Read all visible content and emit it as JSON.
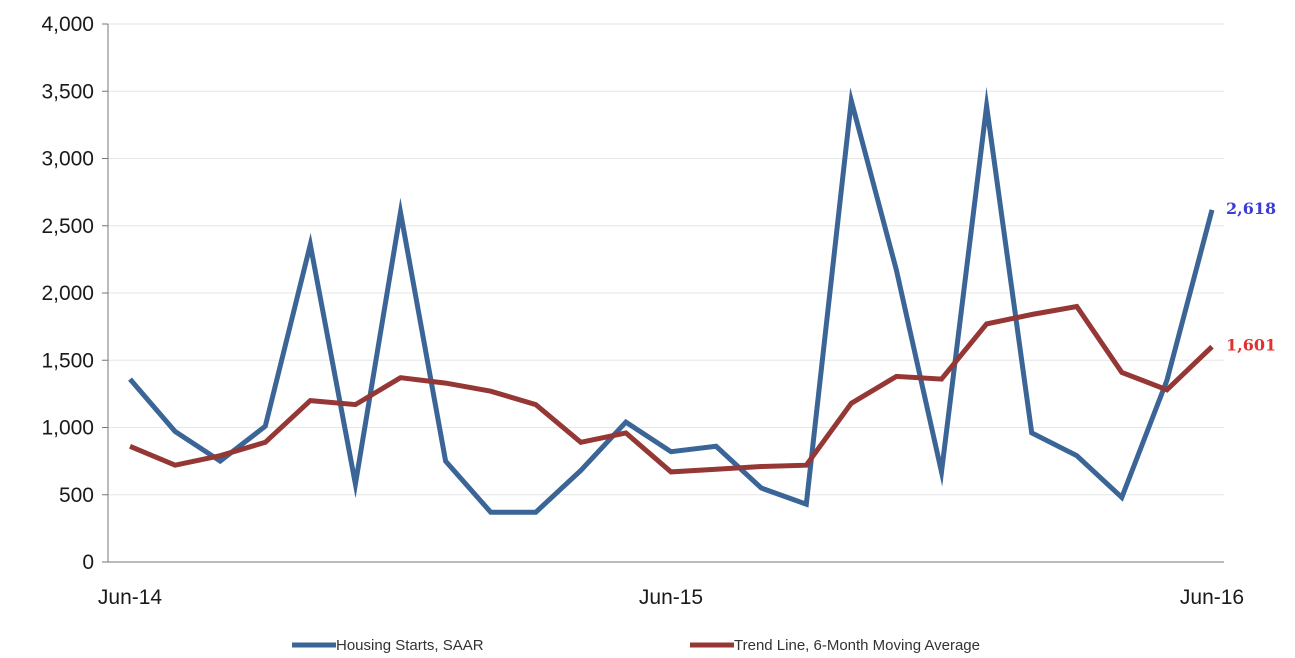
{
  "chart_data": {
    "type": "line",
    "title": "",
    "xlabel": "",
    "ylabel": "",
    "ylim": [
      0,
      4000
    ],
    "yticks": [
      0,
      500,
      1000,
      1500,
      2000,
      2500,
      3000,
      3500,
      4000
    ],
    "ytick_labels": [
      "0",
      "500",
      "1,000",
      "1,500",
      "2,000",
      "2,500",
      "3,000",
      "3,500",
      "4,000"
    ],
    "x": [
      "Jun-14",
      "Jul-14",
      "Aug-14",
      "Sep-14",
      "Oct-14",
      "Nov-14",
      "Dec-14",
      "Jan-15",
      "Feb-15",
      "Mar-15",
      "Apr-15",
      "May-15",
      "Jun-15",
      "Jul-15",
      "Aug-15",
      "Sep-15",
      "Oct-15",
      "Nov-15",
      "Dec-15",
      "Jan-16",
      "Feb-16",
      "Mar-16",
      "Apr-16",
      "May-16",
      "Jun-16"
    ],
    "x_tick_labels": [
      {
        "index": 0,
        "label": "Jun-14"
      },
      {
        "index": 12,
        "label": "Jun-15"
      },
      {
        "index": 24,
        "label": "Jun-16"
      }
    ],
    "grid": "horizontal",
    "legend_position": "bottom",
    "series": [
      {
        "name": "Housing Starts, SAAR",
        "color": "#3a6596",
        "values": [
          1360,
          970,
          750,
          1010,
          2360,
          580,
          2600,
          750,
          370,
          370,
          680,
          1040,
          820,
          860,
          550,
          430,
          3430,
          2170,
          670,
          3390,
          960,
          790,
          480,
          1350,
          2618
        ],
        "end_label": "2,618",
        "end_label_color": "#3b3bd6"
      },
      {
        "name": "Trend Line, 6-Month Moving Average",
        "color": "#953735",
        "values": [
          860,
          720,
          790,
          890,
          1200,
          1170,
          1370,
          1330,
          1270,
          1170,
          890,
          960,
          670,
          690,
          710,
          720,
          1180,
          1380,
          1360,
          1770,
          1840,
          1900,
          1410,
          1280,
          1601
        ],
        "end_label": "1,601",
        "end_label_color": "#e03030"
      }
    ]
  }
}
